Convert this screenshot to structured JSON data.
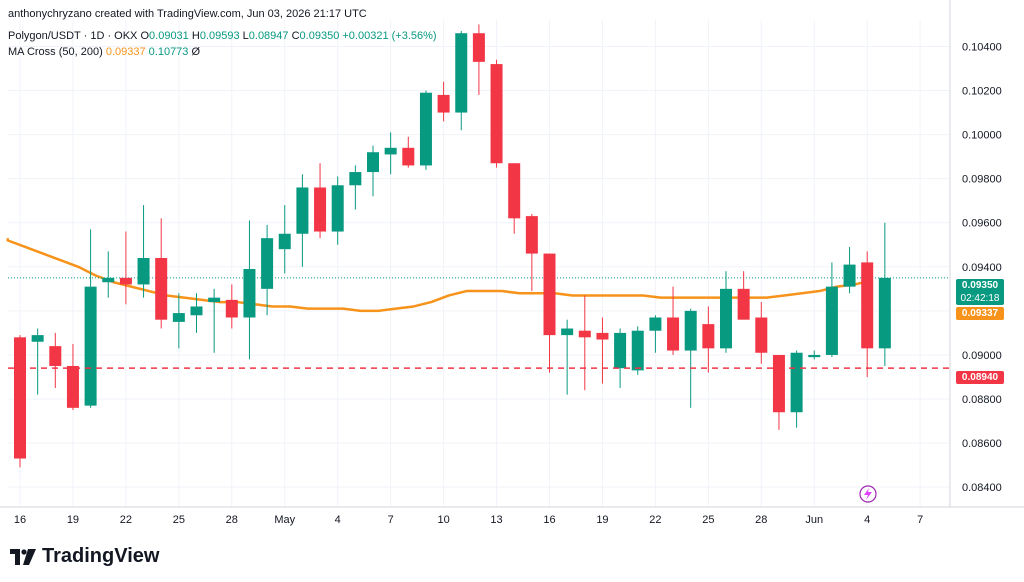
{
  "header": {
    "credit": "anthonychryzano created with TradingView.com, Jun 03, 2026 21:17 UTC",
    "symbol_line": "Polygon/USDT · 1D · OKX",
    "o_label": "O",
    "o_val": "0.09031",
    "h_label": "H",
    "h_val": "0.09593",
    "l_label": "L",
    "l_val": "0.08947",
    "c_label": "C",
    "c_val": "0.09350",
    "change": "+0.00321 (+3.56%)",
    "ma_label": "MA Cross (50, 200)",
    "ma50_val": "0.09337",
    "ma200_val": "0.10773",
    "ma_flag": "Ø"
  },
  "tags": {
    "price": "0.09350",
    "countdown": "02:42:18",
    "ma": "0.09337",
    "hline": "0.08940"
  },
  "logo": {
    "text": "TradingView"
  },
  "colors": {
    "up": "#089981",
    "down": "#f23645",
    "ma": "#f7931a",
    "hline": "#f23645",
    "grid": "#f0f3fa"
  },
  "chart_data": {
    "type": "candlestick",
    "ylim": [
      0.0831,
      0.1052
    ],
    "y_ticks": [
      0.084,
      0.086,
      0.088,
      0.09,
      0.092,
      0.094,
      0.096,
      0.098,
      0.1,
      0.102,
      0.104
    ],
    "y_tick_labels": [
      "0.08400",
      "0.08600",
      "0.08800",
      "0.09000",
      "0.09200",
      "0.09400",
      "0.09600",
      "0.09800",
      "0.10000",
      "0.10200",
      "0.10400"
    ],
    "x_labels": [
      "16",
      "19",
      "22",
      "25",
      "28",
      "May",
      "4",
      "7",
      "10",
      "13",
      "16",
      "19",
      "22",
      "25",
      "28",
      "Jun",
      "4",
      "7"
    ],
    "candles": [
      {
        "o": 0.0908,
        "h": 0.0909,
        "l": 0.0849,
        "c": 0.0853
      },
      {
        "o": 0.0906,
        "h": 0.0912,
        "l": 0.0882,
        "c": 0.0909
      },
      {
        "o": 0.0904,
        "h": 0.091,
        "l": 0.0885,
        "c": 0.0895
      },
      {
        "o": 0.0895,
        "h": 0.0905,
        "l": 0.0875,
        "c": 0.0876
      },
      {
        "o": 0.0877,
        "h": 0.0957,
        "l": 0.0876,
        "c": 0.0931
      },
      {
        "o": 0.0933,
        "h": 0.0947,
        "l": 0.0926,
        "c": 0.0935
      },
      {
        "o": 0.0935,
        "h": 0.0956,
        "l": 0.0923,
        "c": 0.0932
      },
      {
        "o": 0.0932,
        "h": 0.0968,
        "l": 0.0926,
        "c": 0.0944
      },
      {
        "o": 0.0944,
        "h": 0.0962,
        "l": 0.0912,
        "c": 0.0916
      },
      {
        "o": 0.0915,
        "h": 0.0928,
        "l": 0.0903,
        "c": 0.0919
      },
      {
        "o": 0.0918,
        "h": 0.0928,
        "l": 0.091,
        "c": 0.0922
      },
      {
        "o": 0.0924,
        "h": 0.093,
        "l": 0.0901,
        "c": 0.0926
      },
      {
        "o": 0.0925,
        "h": 0.0932,
        "l": 0.0912,
        "c": 0.0917
      },
      {
        "o": 0.0917,
        "h": 0.0961,
        "l": 0.0898,
        "c": 0.0939
      },
      {
        "o": 0.093,
        "h": 0.0959,
        "l": 0.0918,
        "c": 0.0953
      },
      {
        "o": 0.0948,
        "h": 0.0968,
        "l": 0.0937,
        "c": 0.0955
      },
      {
        "o": 0.0955,
        "h": 0.0982,
        "l": 0.094,
        "c": 0.0976
      },
      {
        "o": 0.0976,
        "h": 0.0987,
        "l": 0.0953,
        "c": 0.0956
      },
      {
        "o": 0.0956,
        "h": 0.0981,
        "l": 0.095,
        "c": 0.0977
      },
      {
        "o": 0.0977,
        "h": 0.0986,
        "l": 0.0966,
        "c": 0.0983
      },
      {
        "o": 0.0983,
        "h": 0.0995,
        "l": 0.0972,
        "c": 0.0992
      },
      {
        "o": 0.0991,
        "h": 0.1001,
        "l": 0.0982,
        "c": 0.0994
      },
      {
        "o": 0.0994,
        "h": 0.0999,
        "l": 0.0985,
        "c": 0.0986
      },
      {
        "o": 0.0986,
        "h": 0.102,
        "l": 0.0984,
        "c": 0.1019
      },
      {
        "o": 0.1018,
        "h": 0.1024,
        "l": 0.1006,
        "c": 0.101
      },
      {
        "o": 0.101,
        "h": 0.1047,
        "l": 0.1002,
        "c": 0.1046
      },
      {
        "o": 0.1046,
        "h": 0.105,
        "l": 0.1018,
        "c": 0.1033
      },
      {
        "o": 0.1032,
        "h": 0.1034,
        "l": 0.0985,
        "c": 0.0987
      },
      {
        "o": 0.0987,
        "h": 0.0987,
        "l": 0.0955,
        "c": 0.0962
      },
      {
        "o": 0.0963,
        "h": 0.0964,
        "l": 0.0929,
        "c": 0.0946
      },
      {
        "o": 0.0946,
        "h": 0.0946,
        "l": 0.0892,
        "c": 0.0909
      },
      {
        "o": 0.0909,
        "h": 0.0916,
        "l": 0.0882,
        "c": 0.0912
      },
      {
        "o": 0.0911,
        "h": 0.0927,
        "l": 0.0884,
        "c": 0.0908
      },
      {
        "o": 0.091,
        "h": 0.0917,
        "l": 0.0887,
        "c": 0.0907
      },
      {
        "o": 0.0894,
        "h": 0.0912,
        "l": 0.0885,
        "c": 0.091
      },
      {
        "o": 0.0893,
        "h": 0.0913,
        "l": 0.0891,
        "c": 0.0911
      },
      {
        "o": 0.0911,
        "h": 0.0918,
        "l": 0.0901,
        "c": 0.0917
      },
      {
        "o": 0.0917,
        "h": 0.0931,
        "l": 0.09,
        "c": 0.0902
      },
      {
        "o": 0.0902,
        "h": 0.0921,
        "l": 0.0876,
        "c": 0.092
      },
      {
        "o": 0.0914,
        "h": 0.0922,
        "l": 0.0892,
        "c": 0.0903
      },
      {
        "o": 0.0903,
        "h": 0.0938,
        "l": 0.0901,
        "c": 0.093
      },
      {
        "o": 0.093,
        "h": 0.0938,
        "l": 0.0918,
        "c": 0.0916
      },
      {
        "o": 0.0917,
        "h": 0.0924,
        "l": 0.0896,
        "c": 0.0901
      },
      {
        "o": 0.09,
        "h": 0.09,
        "l": 0.0866,
        "c": 0.0874
      },
      {
        "o": 0.0874,
        "h": 0.0902,
        "l": 0.0867,
        "c": 0.0901
      },
      {
        "o": 0.0899,
        "h": 0.0902,
        "l": 0.0898,
        "c": 0.09
      },
      {
        "o": 0.09,
        "h": 0.0942,
        "l": 0.0899,
        "c": 0.0931
      },
      {
        "o": 0.0931,
        "h": 0.0949,
        "l": 0.0928,
        "c": 0.0941
      },
      {
        "o": 0.0942,
        "h": 0.0947,
        "l": 0.089,
        "c": 0.0903
      },
      {
        "o": 0.0903,
        "h": 0.096,
        "l": 0.0895,
        "c": 0.0935
      }
    ],
    "ma50": [
      0.0952,
      0.0949,
      0.0946,
      0.0943,
      0.094,
      0.0936,
      0.0933,
      0.0931,
      0.0929,
      0.0927,
      0.0926,
      0.0925,
      0.0924,
      0.0924,
      0.0923,
      0.0922,
      0.0922,
      0.0921,
      0.0921,
      0.0921,
      0.092,
      0.092,
      0.0921,
      0.0922,
      0.0924,
      0.0927,
      0.0929,
      0.0929,
      0.0929,
      0.0928,
      0.0928,
      0.0928,
      0.0927,
      0.0927,
      0.0927,
      0.0927,
      0.0927,
      0.0926,
      0.0926,
      0.0926,
      0.0926,
      0.0926,
      0.0926,
      0.0926,
      0.0927,
      0.0928,
      0.0929,
      0.0931,
      0.0932,
      0.0934
    ],
    "hline": 0.0894
  }
}
